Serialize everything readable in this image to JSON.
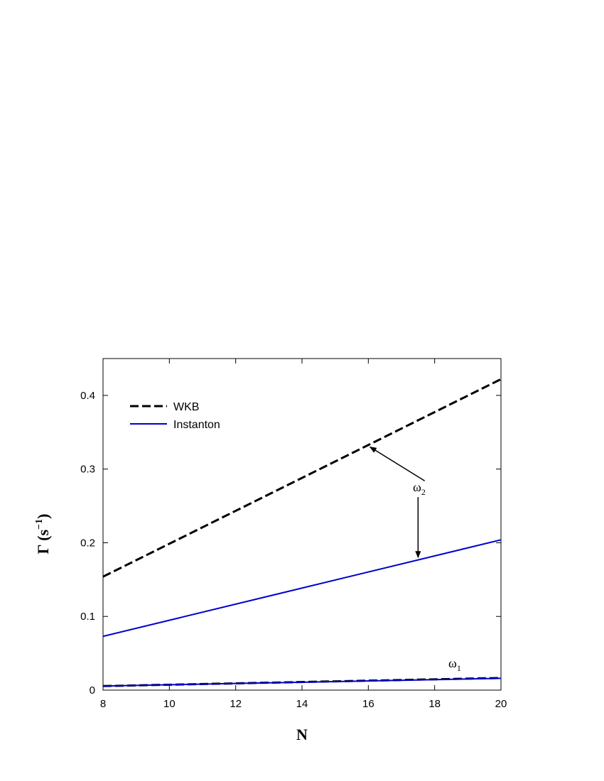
{
  "chart_data": {
    "type": "line",
    "xlabel": "N",
    "ylabel": {
      "main": "Γ (s",
      "sup": "−1",
      "close": ")"
    },
    "xlim": [
      8,
      20
    ],
    "ylim": [
      0,
      0.45
    ],
    "xticks": [
      "8",
      "10",
      "12",
      "14",
      "16",
      "18",
      "20"
    ],
    "yticks": [
      "0",
      "0.1",
      "0.2",
      "0.3",
      "0.4"
    ],
    "legend": {
      "placement": "top-left",
      "entries": [
        "WKB",
        "Instanton"
      ]
    },
    "colors": {
      "wkb": "#000000",
      "instanton": "#0000cc"
    },
    "series": [
      {
        "name": "WKB",
        "mode": "ω2",
        "style": "dashed",
        "x": [
          8,
          20
        ],
        "y": [
          0.154,
          0.422
        ]
      },
      {
        "name": "Instanton",
        "mode": "ω2",
        "style": "solid",
        "x": [
          8,
          20
        ],
        "y": [
          0.073,
          0.204
        ]
      },
      {
        "name": "WKB",
        "mode": "ω1",
        "style": "dashed",
        "x": [
          8,
          20
        ],
        "y": [
          0.0055,
          0.0165
        ]
      },
      {
        "name": "Instanton",
        "mode": "ω1",
        "style": "solid",
        "x": [
          8,
          20
        ],
        "y": [
          0.0055,
          0.016
        ]
      }
    ],
    "annotations": [
      {
        "id": "omega2",
        "text": "ω",
        "sub": "2",
        "pos": [
          17.75,
          0.275
        ],
        "arrows": [
          [
            16.05,
            0.33
          ],
          [
            17.5,
            0.18
          ]
        ]
      },
      {
        "id": "omega1",
        "text": "ω",
        "sub": "1",
        "pos": [
          19.05,
          0.0225
        ],
        "arrows": []
      }
    ]
  }
}
